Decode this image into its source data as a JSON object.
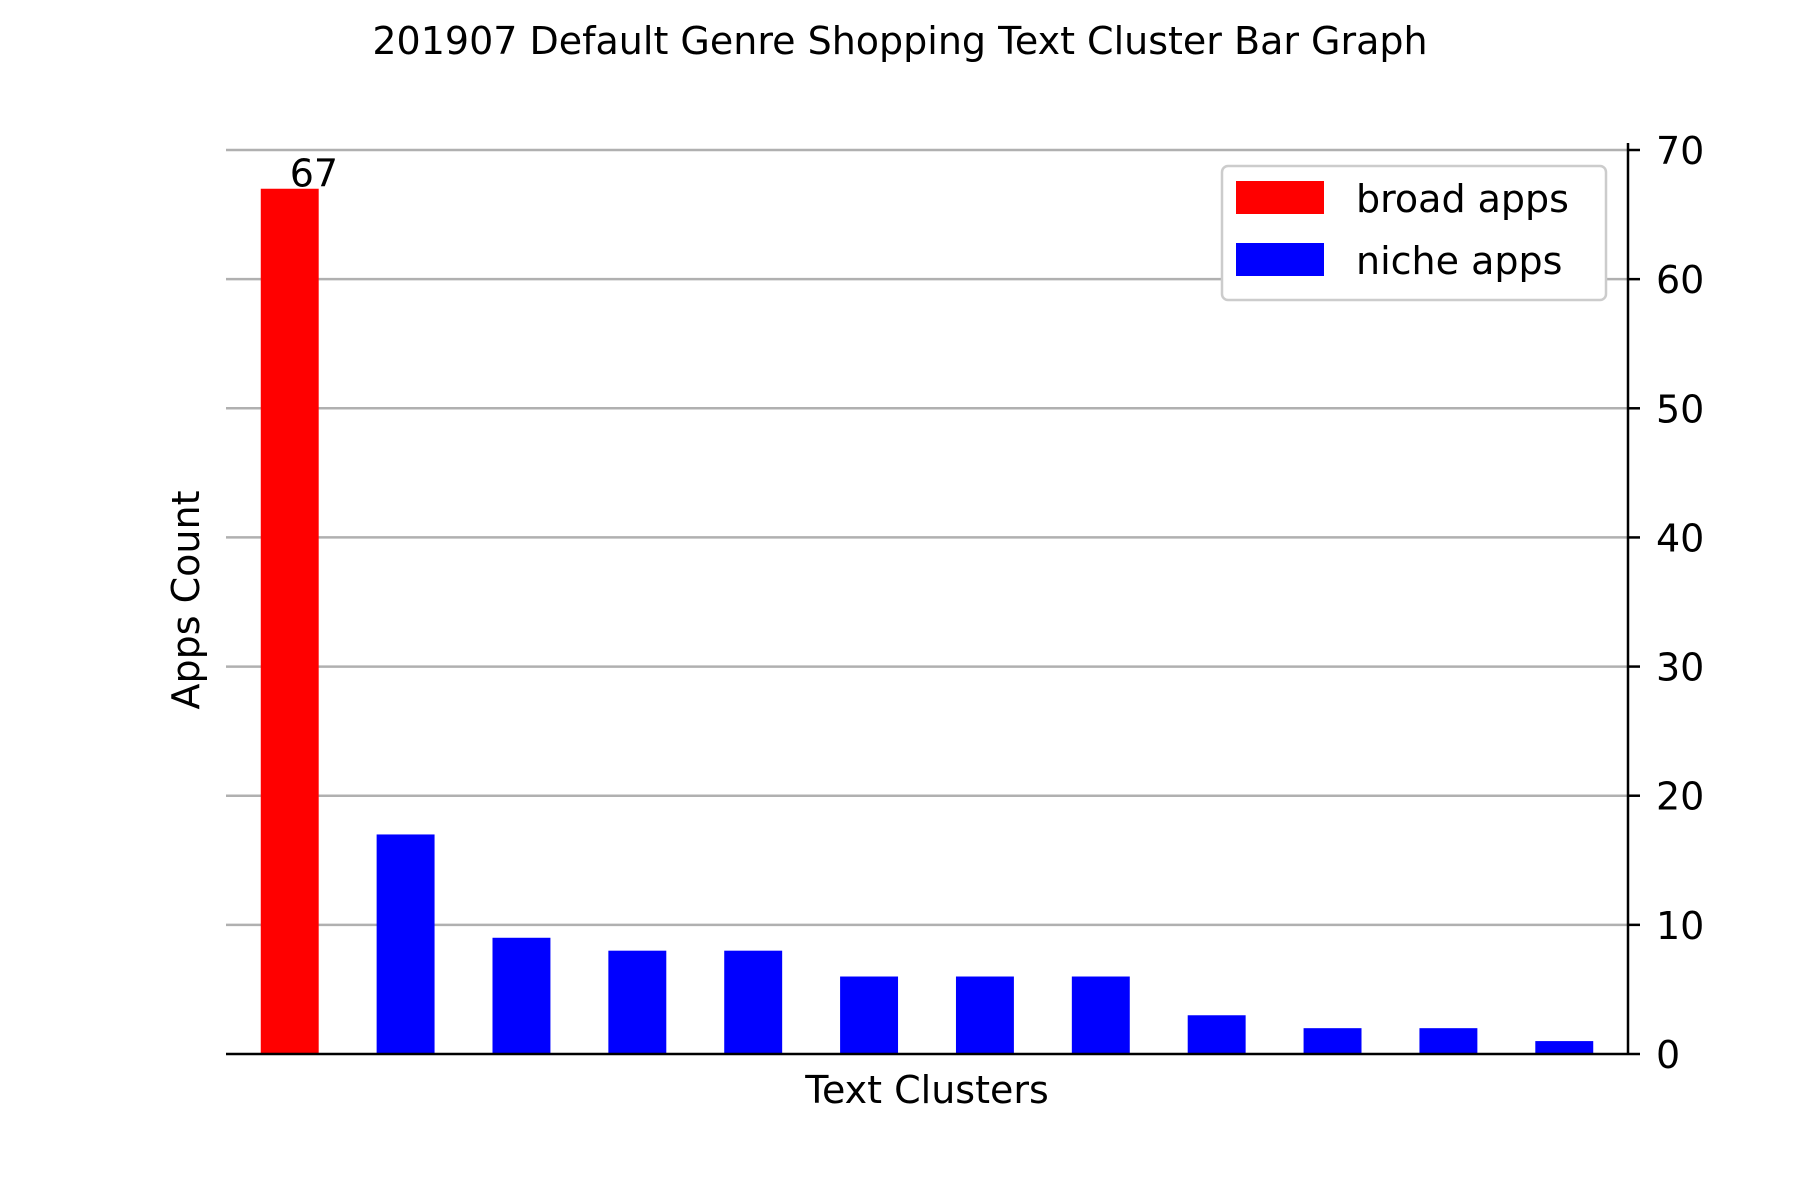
{
  "chart_data": {
    "type": "bar",
    "title": "201907 Default Genre Shopping Text Cluster Bar Graph",
    "xlabel": "Text Clusters",
    "ylabel": "Apps Count",
    "ylim": [
      0,
      70
    ],
    "yticks": [
      0,
      10,
      20,
      30,
      40,
      50,
      60,
      70
    ],
    "y_axis_side": "right",
    "grid": true,
    "legend_position": "top-right",
    "values": [
      67,
      17,
      9,
      8,
      8,
      6,
      6,
      6,
      3,
      2,
      2,
      1
    ],
    "groups": [
      "broad",
      "niche",
      "niche",
      "niche",
      "niche",
      "niche",
      "niche",
      "niche",
      "niche",
      "niche",
      "niche",
      "niche"
    ],
    "data_labels": [
      "67"
    ],
    "legend": [
      {
        "key": "broad",
        "label": "broad apps",
        "color": "#ff0000"
      },
      {
        "key": "niche",
        "label": "niche apps",
        "color": "#0000ff"
      }
    ]
  }
}
